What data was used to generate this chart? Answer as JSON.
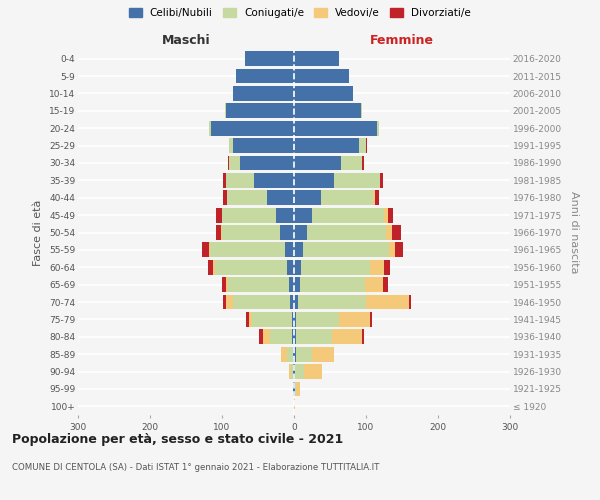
{
  "age_groups": [
    "100+",
    "95-99",
    "90-94",
    "85-89",
    "80-84",
    "75-79",
    "70-74",
    "65-69",
    "60-64",
    "55-59",
    "50-54",
    "45-49",
    "40-44",
    "35-39",
    "30-34",
    "25-29",
    "20-24",
    "15-19",
    "10-14",
    "5-9",
    "0-4"
  ],
  "birth_years": [
    "≤ 1920",
    "1921-1925",
    "1926-1930",
    "1931-1935",
    "1936-1940",
    "1941-1945",
    "1946-1950",
    "1951-1955",
    "1956-1960",
    "1961-1965",
    "1966-1970",
    "1971-1975",
    "1976-1980",
    "1981-1985",
    "1986-1990",
    "1991-1995",
    "1996-2000",
    "2001-2005",
    "2006-2010",
    "2011-2015",
    "2016-2020"
  ],
  "male": {
    "celibe": [
      0,
      1,
      1,
      2,
      3,
      3,
      5,
      7,
      10,
      12,
      20,
      25,
      38,
      55,
      75,
      85,
      115,
      95,
      85,
      80,
      68
    ],
    "coniugato": [
      0,
      0,
      3,
      8,
      30,
      55,
      80,
      85,
      100,
      105,
      80,
      75,
      55,
      40,
      15,
      5,
      3,
      1,
      0,
      0,
      0
    ],
    "vedovo": [
      0,
      0,
      3,
      8,
      10,
      5,
      10,
      3,
      2,
      1,
      1,
      0,
      0,
      0,
      0,
      0,
      0,
      0,
      0,
      0,
      0
    ],
    "divorziato": [
      0,
      0,
      0,
      0,
      5,
      3,
      3,
      5,
      8,
      10,
      8,
      8,
      5,
      3,
      2,
      0,
      0,
      0,
      0,
      0,
      0
    ]
  },
  "female": {
    "nubile": [
      0,
      1,
      2,
      3,
      3,
      3,
      5,
      8,
      10,
      12,
      18,
      25,
      38,
      55,
      65,
      90,
      115,
      93,
      82,
      76,
      63
    ],
    "coniugata": [
      0,
      2,
      12,
      22,
      50,
      60,
      95,
      90,
      95,
      120,
      110,
      100,
      72,
      65,
      30,
      10,
      3,
      1,
      0,
      0,
      0
    ],
    "vedova": [
      2,
      5,
      25,
      30,
      42,
      42,
      60,
      25,
      20,
      8,
      8,
      5,
      3,
      0,
      0,
      0,
      0,
      0,
      0,
      0,
      0
    ],
    "divorziata": [
      0,
      0,
      0,
      0,
      2,
      3,
      3,
      8,
      8,
      12,
      12,
      8,
      5,
      3,
      2,
      1,
      0,
      0,
      0,
      0,
      0
    ]
  },
  "colors": {
    "celibe": "#4472a8",
    "coniugato": "#c5d9a0",
    "vedovo": "#f5c97a",
    "divorziato": "#c0222a"
  },
  "xlim": 300,
  "title": "Popolazione per età, sesso e stato civile - 2021",
  "subtitle": "COMUNE DI CENTOLA (SA) - Dati ISTAT 1° gennaio 2021 - Elaborazione TUTTITALIA.IT",
  "ylabel_left": "Fasce di età",
  "ylabel_right": "Anni di nascita",
  "xlabel_left": "Maschi",
  "xlabel_right": "Femmine",
  "bg_color": "#f5f5f5",
  "legend_labels": [
    "Celibi/Nubili",
    "Coniugati/e",
    "Vedovi/e",
    "Divorziati/e"
  ]
}
